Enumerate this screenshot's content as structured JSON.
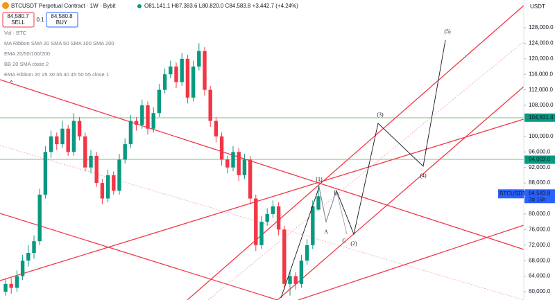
{
  "chart_data": {
    "type": "candlestick",
    "title": "BTCUSDT Perpetual Contract · 1W · Bybit",
    "ohlc_text": "O81,141.1 H87,383.6 L80,820.0 C84,583.8 +3,442.7 (+4.24%)",
    "sell": {
      "price": "84,580.7",
      "label": "SELL"
    },
    "spread": "0.1",
    "buy": {
      "price": "84,580.8",
      "label": "BUY"
    },
    "indicators": [
      "Vol · BTC",
      "MA Ribbon SMA 20 SMA 50 SMA 100 SMA 200",
      "EMA 20/50/100/200",
      "BB 20 SMA close 2",
      "EMA Ribbon 20 25 30 35 40 45 50 55 close 1"
    ],
    "currency": "USDT",
    "ylim": [
      57860,
      135140
    ],
    "yticks": [
      {
        "value": 60000,
        "label": "60,000.0"
      },
      {
        "value": 64000,
        "label": "64,000.0"
      },
      {
        "value": 68000,
        "label": "68,000.0"
      },
      {
        "value": 72000,
        "label": "72,000.0"
      },
      {
        "value": 76000,
        "label": "76,000.0"
      },
      {
        "value": 80000,
        "label": "80,000.0"
      },
      {
        "value": 88000,
        "label": "88,000.0"
      },
      {
        "value": 92000,
        "label": "92,000.0"
      },
      {
        "value": 96000,
        "label": "96,000.0"
      },
      {
        "value": 100000,
        "label": "100,000.0"
      },
      {
        "value": 108000,
        "label": "108,000.0"
      },
      {
        "value": 112000,
        "label": "112,000.0"
      },
      {
        "value": 116000,
        "label": "116,000.0"
      },
      {
        "value": 120000,
        "label": "120,000.0"
      },
      {
        "value": 124000,
        "label": "124,000.0"
      },
      {
        "value": 128000,
        "label": "128,000.0"
      }
    ],
    "up_color": "#089981",
    "down_color": "#f23645",
    "candles": [
      [
        60000,
        63500,
        59000,
        62000
      ],
      [
        62000,
        63500,
        59500,
        61000
      ],
      [
        61000,
        65500,
        60000,
        64000
      ],
      [
        64000,
        69500,
        63000,
        68000
      ],
      [
        68000,
        72000,
        66500,
        70000
      ],
      [
        70000,
        74500,
        68500,
        73000
      ],
      [
        73000,
        86500,
        72000,
        85000
      ],
      [
        85000,
        97500,
        84000,
        96000
      ],
      [
        96000,
        101500,
        94500,
        100000
      ],
      [
        100000,
        101000,
        96500,
        98000
      ],
      [
        98000,
        104000,
        97000,
        102000
      ],
      [
        102000,
        103000,
        95000,
        96000
      ],
      [
        96000,
        106000,
        95000,
        104000
      ],
      [
        104000,
        105000,
        99000,
        100000
      ],
      [
        100000,
        101000,
        91000,
        92000
      ],
      [
        92000,
        96500,
        90500,
        95000
      ],
      [
        95000,
        96000,
        87000,
        88000
      ],
      [
        88000,
        89000,
        82500,
        84000
      ],
      [
        84000,
        91500,
        83000,
        90000
      ],
      [
        90000,
        91000,
        85000,
        86000
      ],
      [
        86000,
        95500,
        85000,
        94000
      ],
      [
        94000,
        99500,
        93000,
        98000
      ],
      [
        98000,
        105500,
        97000,
        104000
      ],
      [
        104000,
        105000,
        101500,
        103000
      ],
      [
        103000,
        109500,
        102000,
        108000
      ],
      [
        108000,
        109000,
        100500,
        102000
      ],
      [
        102000,
        107500,
        101000,
        106000
      ],
      [
        106000,
        113500,
        105000,
        112000
      ],
      [
        112000,
        117500,
        111000,
        116000
      ],
      [
        116000,
        119500,
        115000,
        118000
      ],
      [
        118000,
        119000,
        112500,
        114000
      ],
      [
        114000,
        121500,
        113000,
        120000
      ],
      [
        120000,
        121000,
        108500,
        110000
      ],
      [
        110000,
        119500,
        109000,
        118000
      ],
      [
        118000,
        124000,
        117000,
        122000
      ],
      [
        122000,
        123000,
        110500,
        112000
      ],
      [
        112000,
        113000,
        102500,
        104000
      ],
      [
        104000,
        105000,
        98500,
        100000
      ],
      [
        100000,
        101000,
        92500,
        94000
      ],
      [
        94000,
        95000,
        90500,
        92000
      ],
      [
        92000,
        97500,
        91000,
        96000
      ],
      [
        96000,
        97000,
        88500,
        90000
      ],
      [
        90000,
        95500,
        89000,
        94000
      ],
      [
        94000,
        95000,
        82500,
        84000
      ],
      [
        84000,
        85000,
        70500,
        72000
      ],
      [
        72000,
        79500,
        71000,
        78000
      ],
      [
        78000,
        81500,
        77000,
        80000
      ],
      [
        80000,
        83500,
        79000,
        82000
      ],
      [
        82000,
        83000,
        74500,
        76000
      ],
      [
        76000,
        77000,
        60500,
        62000
      ],
      [
        62000,
        65500,
        59000,
        64000
      ],
      [
        64000,
        65000,
        60500,
        62000
      ],
      [
        62000,
        69500,
        61000,
        68000
      ],
      [
        68000,
        73500,
        67000,
        72000
      ],
      [
        72000,
        83500,
        71000,
        82000
      ],
      [
        81141.1,
        87383.6,
        80820,
        84583.8
      ]
    ],
    "price_labels": [
      {
        "value": 104831.4,
        "label": "104,831.4",
        "color": "#089981"
      },
      {
        "value": 94003.0,
        "label": "94,003.0",
        "color": "#089981"
      },
      {
        "value": 84583.8,
        "label": "84,583.8",
        "color": "#2962ff",
        "name": "BTCUSDT.P",
        "countdown": "2d 15h"
      }
    ],
    "wave_labels": [
      "(1)",
      "(2)",
      "(3)",
      "(4)",
      "(5)",
      "A",
      "B",
      "C"
    ]
  }
}
